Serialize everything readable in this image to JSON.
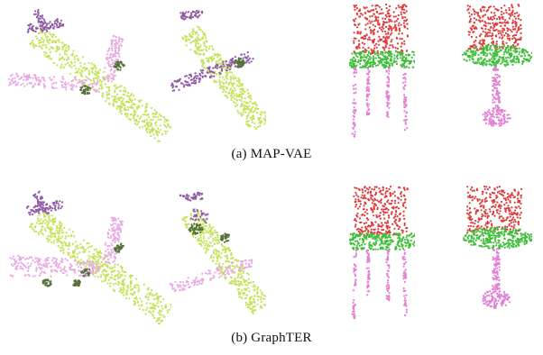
{
  "figure": {
    "rows": [
      {
        "caption": "(a)  MAP-VAE",
        "shapes": [
          "airplane",
          "airplane",
          "chair",
          "chair"
        ]
      },
      {
        "caption": "(b)  GraphTER",
        "shapes": [
          "airplane",
          "airplane",
          "chair",
          "chair"
        ]
      }
    ],
    "part_colors": {
      "airplane_body": "#c3e35a",
      "airplane_wing": "#e8a9e4",
      "airplane_tail": "#8f5aa6",
      "airplane_engine": "#56703a",
      "chair_back": "#dd3a3a",
      "chair_seat": "#3fbf3a",
      "chair_leg": "#e27ed4"
    }
  }
}
